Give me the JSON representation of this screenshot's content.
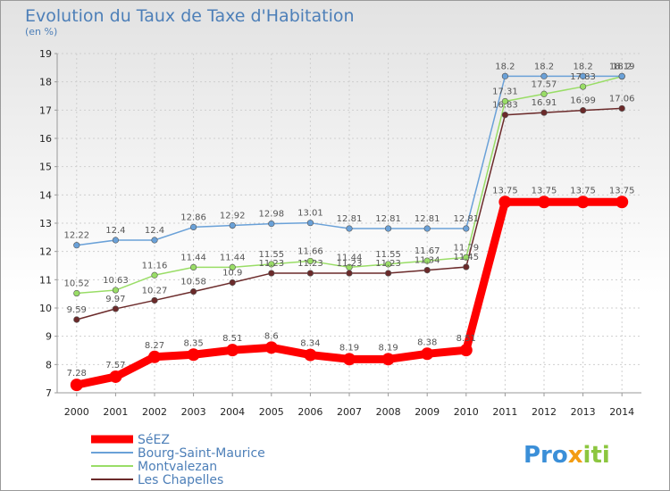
{
  "title": "Evolution du Taux de Taxe d'Habitation",
  "subtitle": "(en %)",
  "brand": {
    "p1": "Pro",
    "x": "x",
    "p2": "iti",
    "color_main": "#3b8fd8",
    "color_x": "#f39c12",
    "color_i": "#8cc63f"
  },
  "chart_data": {
    "type": "line",
    "title": "Evolution du Taux de Taxe d'Habitation",
    "ylabel": "(en %)",
    "xlabel": "",
    "ylim": [
      7,
      19
    ],
    "yticks": [
      "7",
      "8",
      "9",
      "10",
      "11",
      "12",
      "13",
      "14",
      "15",
      "16",
      "17",
      "18",
      "19"
    ],
    "categories": [
      "2000",
      "2001",
      "2002",
      "2003",
      "2004",
      "2005",
      "2006",
      "2007",
      "2008",
      "2009",
      "2010",
      "2011",
      "2012",
      "2013",
      "2014"
    ],
    "grid": true,
    "legend": "bottom-left",
    "series": [
      {
        "name": "SéEZ",
        "color": "#ff0000",
        "values": [
          7.28,
          7.57,
          8.27,
          8.35,
          8.51,
          8.6,
          8.34,
          8.19,
          8.19,
          8.38,
          8.51,
          13.75,
          13.75,
          13.75,
          13.75
        ],
        "labels": [
          "7.28",
          "7.57",
          "8.27",
          "8.35",
          "8.51",
          "8.6",
          "8.34",
          "8.19",
          "8.19",
          "8.38",
          "8.51",
          "13.75",
          "13.75",
          "13.75",
          "13.75"
        ]
      },
      {
        "name": "Bourg-Saint-Maurice",
        "color": "#6aa1d8",
        "values": [
          12.22,
          12.4,
          12.4,
          12.86,
          12.92,
          12.98,
          13.01,
          12.81,
          12.81,
          12.81,
          12.81,
          18.2,
          18.2,
          18.2,
          18.2
        ],
        "labels": [
          "12.22",
          "12.4",
          "12.4",
          "12.86",
          "12.92",
          "12.98",
          "13.01",
          "12.81",
          "12.81",
          "12.81",
          "12.81",
          "18.2",
          "18.2",
          "18.2",
          "18.2"
        ]
      },
      {
        "name": "Montvalezan",
        "color": "#99dd66",
        "values": [
          10.52,
          10.63,
          11.16,
          11.44,
          11.44,
          11.55,
          11.66,
          11.44,
          11.55,
          11.67,
          11.79,
          17.31,
          17.57,
          17.83,
          18.19
        ],
        "labels": [
          "10.52",
          "10.63",
          "11.16",
          "11.44",
          "11.44",
          "11.55",
          "11.66",
          "11.44",
          "11.55",
          "11.67",
          "11.79",
          "17.31",
          "17.57",
          "17.83",
          "18.19"
        ]
      },
      {
        "name": "Les Chapelles",
        "color": "#6b2a2a",
        "values": [
          9.59,
          9.97,
          10.27,
          10.58,
          10.9,
          11.23,
          11.23,
          11.23,
          11.23,
          11.34,
          11.45,
          16.83,
          16.91,
          16.99,
          17.06
        ],
        "labels": [
          "9.59",
          "9.97",
          "10.27",
          "10.58",
          "10.9",
          "11.23",
          "11.23",
          "11.23",
          "11.23",
          "11.34",
          "11.45",
          "16.83",
          "16.91",
          "16.99",
          "17.06"
        ]
      }
    ]
  }
}
